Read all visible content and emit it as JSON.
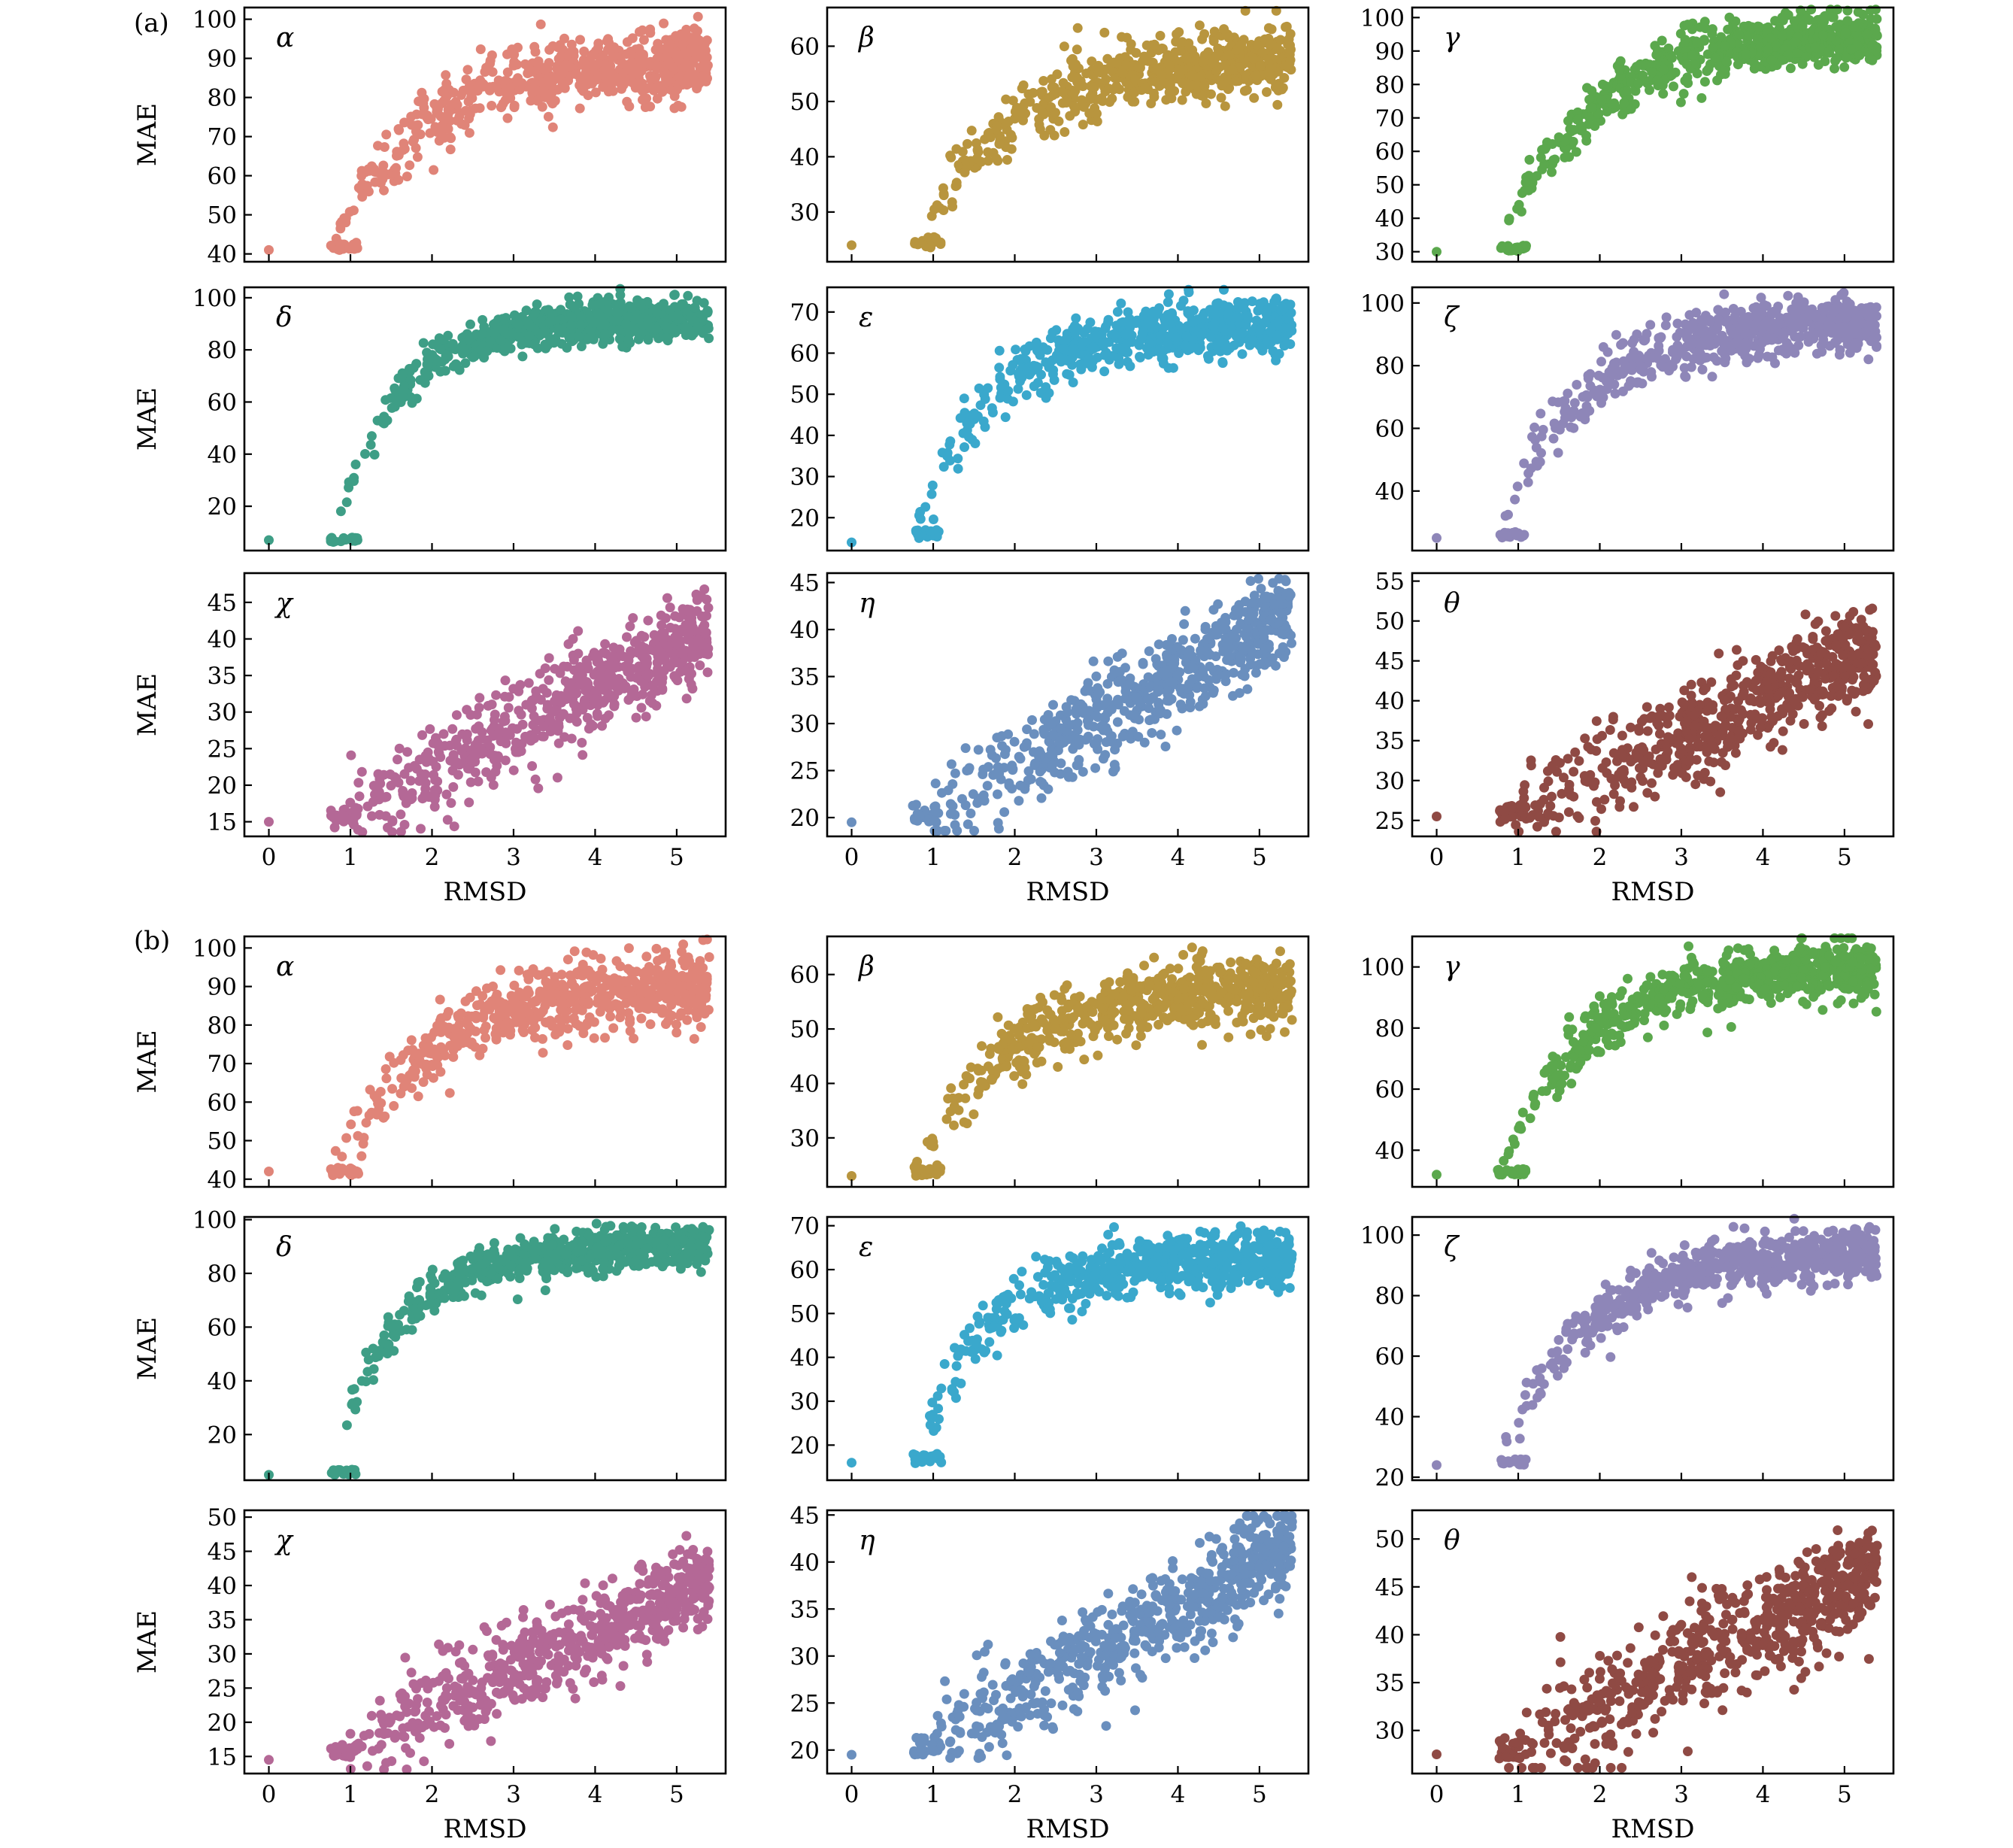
{
  "figure": {
    "group_labels": [
      "(a)",
      "(b)"
    ],
    "x_axis_label": "RMSD",
    "y_axis_label": "MAE"
  },
  "chart_data": [
    {
      "group": "(a)",
      "panel": "α",
      "type": "scatter",
      "color": "#e08478",
      "xlim": [
        -0.3,
        5.6
      ],
      "ylim": [
        38,
        103
      ],
      "xticks": [
        0,
        1,
        2,
        3,
        4,
        5
      ],
      "yticks": [
        40,
        50,
        60,
        70,
        80,
        90,
        100
      ],
      "xlabel": "",
      "ylabel": "MAE",
      "x_range": [
        0.75,
        5.4
      ],
      "y_floor": 41,
      "y_plateau": 90,
      "curve_k": 0.85,
      "noise": 4.5,
      "outlier": [
        0,
        41
      ]
    },
    {
      "group": "(a)",
      "panel": "β",
      "type": "scatter",
      "color": "#b8953e",
      "xlim": [
        -0.3,
        5.6
      ],
      "ylim": [
        21,
        67
      ],
      "xticks": [
        0,
        1,
        2,
        3,
        4,
        5
      ],
      "yticks": [
        30,
        40,
        50,
        60
      ],
      "xlabel": "",
      "ylabel": "",
      "x_range": [
        0.75,
        5.4
      ],
      "y_floor": 23.5,
      "y_plateau": 58,
      "curve_k": 0.85,
      "noise": 3.0,
      "outlier": [
        0,
        24
      ]
    },
    {
      "group": "(a)",
      "panel": "γ",
      "type": "scatter",
      "color": "#5ba84d",
      "xlim": [
        -0.3,
        5.6
      ],
      "ylim": [
        27,
        103
      ],
      "xticks": [
        0,
        1,
        2,
        3,
        4,
        5
      ],
      "yticks": [
        30,
        40,
        50,
        60,
        70,
        80,
        90,
        100
      ],
      "xlabel": "",
      "ylabel": "",
      "x_range": [
        0.75,
        5.4
      ],
      "y_floor": 30,
      "y_plateau": 95,
      "curve_k": 0.9,
      "noise": 4.0,
      "outlier": [
        0,
        30
      ]
    },
    {
      "group": "(a)",
      "panel": "δ",
      "type": "scatter",
      "color": "#3e9e86",
      "xlim": [
        -0.3,
        5.6
      ],
      "ylim": [
        3,
        104
      ],
      "xticks": [
        0,
        1,
        2,
        3,
        4,
        5
      ],
      "yticks": [
        20,
        40,
        60,
        80,
        100
      ],
      "xlabel": "",
      "ylabel": "MAE",
      "x_range": [
        0.75,
        5.4
      ],
      "y_floor": 6,
      "y_plateau": 92,
      "curve_k": 1.2,
      "noise": 4.0,
      "outlier": [
        0,
        7
      ]
    },
    {
      "group": "(a)",
      "panel": "ε",
      "type": "scatter",
      "color": "#3aa8cc",
      "xlim": [
        -0.3,
        5.6
      ],
      "ylim": [
        12,
        76
      ],
      "xticks": [
        0,
        1,
        2,
        3,
        4,
        5
      ],
      "yticks": [
        20,
        30,
        40,
        50,
        60,
        70
      ],
      "xlabel": "",
      "ylabel": "",
      "x_range": [
        0.75,
        5.4
      ],
      "y_floor": 15,
      "y_plateau": 67,
      "curve_k": 1.05,
      "noise": 3.5,
      "outlier": [
        0,
        14
      ]
    },
    {
      "group": "(a)",
      "panel": "ζ",
      "type": "scatter",
      "color": "#8e86b8",
      "xlim": [
        -0.3,
        5.6
      ],
      "ylim": [
        21,
        105
      ],
      "xticks": [
        0,
        1,
        2,
        3,
        4,
        5
      ],
      "yticks": [
        40,
        60,
        80,
        100
      ],
      "xlabel": "",
      "ylabel": "",
      "x_range": [
        0.75,
        5.4
      ],
      "y_floor": 25,
      "y_plateau": 94,
      "curve_k": 0.95,
      "noise": 4.5,
      "outlier": [
        0,
        25
      ]
    },
    {
      "group": "(a)",
      "panel": "χ",
      "type": "scatter",
      "color": "#b46896",
      "xlim": [
        -0.3,
        5.6
      ],
      "ylim": [
        13,
        49
      ],
      "xticks": [
        0,
        1,
        2,
        3,
        4,
        5
      ],
      "yticks": [
        15,
        20,
        25,
        30,
        35,
        40,
        45
      ],
      "xlabel": "RMSD",
      "ylabel": "MAE",
      "x_range": [
        0.75,
        5.4
      ],
      "y_start": 15,
      "slope": 5.6,
      "noise": 3.2,
      "outlier": [
        0,
        15
      ]
    },
    {
      "group": "(a)",
      "panel": "η",
      "type": "scatter",
      "color": "#6a8fbe",
      "xlim": [
        -0.3,
        5.6
      ],
      "ylim": [
        18,
        46
      ],
      "xticks": [
        0,
        1,
        2,
        3,
        4,
        5
      ],
      "yticks": [
        20,
        25,
        30,
        35,
        40,
        45
      ],
      "xlabel": "RMSD",
      "ylabel": "",
      "x_range": [
        0.75,
        5.4
      ],
      "y_start": 19.5,
      "slope": 4.8,
      "noise": 2.5,
      "outlier": [
        0,
        19.5
      ]
    },
    {
      "group": "(a)",
      "panel": "θ",
      "type": "scatter",
      "color": "#8f4a44",
      "xlim": [
        -0.3,
        5.6
      ],
      "ylim": [
        23,
        56
      ],
      "xticks": [
        0,
        1,
        2,
        3,
        4,
        5
      ],
      "yticks": [
        25,
        30,
        35,
        40,
        45,
        50,
        55
      ],
      "xlabel": "RMSD",
      "ylabel": "",
      "x_range": [
        0.75,
        5.4
      ],
      "y_start": 25,
      "slope": 4.7,
      "noise": 3.0,
      "outlier": [
        0,
        25.5
      ]
    },
    {
      "group": "(b)",
      "panel": "α",
      "type": "scatter",
      "color": "#e08478",
      "xlim": [
        -0.3,
        5.6
      ],
      "ylim": [
        38,
        103
      ],
      "xticks": [
        0,
        1,
        2,
        3,
        4,
        5
      ],
      "yticks": [
        40,
        50,
        60,
        70,
        80,
        90,
        100
      ],
      "xlabel": "",
      "ylabel": "MAE",
      "x_range": [
        0.75,
        5.4
      ],
      "y_floor": 41,
      "y_plateau": 90,
      "curve_k": 0.85,
      "noise": 4.5,
      "outlier": [
        0,
        42
      ]
    },
    {
      "group": "(b)",
      "panel": "β",
      "type": "scatter",
      "color": "#b8953e",
      "xlim": [
        -0.3,
        5.6
      ],
      "ylim": [
        21,
        67
      ],
      "xticks": [
        0,
        1,
        2,
        3,
        4,
        5
      ],
      "yticks": [
        30,
        40,
        50,
        60
      ],
      "xlabel": "",
      "ylabel": "",
      "x_range": [
        0.75,
        5.4
      ],
      "y_floor": 23,
      "y_plateau": 58,
      "curve_k": 0.85,
      "noise": 3.0,
      "outlier": [
        0,
        23
      ]
    },
    {
      "group": "(b)",
      "panel": "γ",
      "type": "scatter",
      "color": "#5ba84d",
      "xlim": [
        -0.3,
        5.6
      ],
      "ylim": [
        28,
        110
      ],
      "xticks": [
        0,
        1,
        2,
        3,
        4,
        5
      ],
      "yticks": [
        40,
        60,
        80,
        100
      ],
      "xlabel": "",
      "ylabel": "",
      "x_range": [
        0.75,
        5.4
      ],
      "y_floor": 32,
      "y_plateau": 100,
      "curve_k": 0.9,
      "noise": 4.5,
      "outlier": [
        0,
        32
      ]
    },
    {
      "group": "(b)",
      "panel": "δ",
      "type": "scatter",
      "color": "#3e9e86",
      "xlim": [
        -0.3,
        5.6
      ],
      "ylim": [
        3,
        101
      ],
      "xticks": [
        0,
        1,
        2,
        3,
        4,
        5
      ],
      "yticks": [
        20,
        40,
        60,
        80,
        100
      ],
      "xlabel": "",
      "ylabel": "MAE",
      "x_range": [
        0.75,
        5.4
      ],
      "y_floor": 5,
      "y_plateau": 90,
      "curve_k": 1.2,
      "noise": 4.0,
      "outlier": [
        0,
        5
      ]
    },
    {
      "group": "(b)",
      "panel": "ε",
      "type": "scatter",
      "color": "#3aa8cc",
      "xlim": [
        -0.3,
        5.6
      ],
      "ylim": [
        12,
        72
      ],
      "xticks": [
        0,
        1,
        2,
        3,
        4,
        5
      ],
      "yticks": [
        20,
        30,
        40,
        50,
        60,
        70
      ],
      "xlabel": "",
      "ylabel": "",
      "x_range": [
        0.75,
        5.4
      ],
      "y_floor": 16,
      "y_plateau": 63,
      "curve_k": 1.05,
      "noise": 3.5,
      "outlier": [
        0,
        16
      ]
    },
    {
      "group": "(b)",
      "panel": "ζ",
      "type": "scatter",
      "color": "#8e86b8",
      "xlim": [
        -0.3,
        5.6
      ],
      "ylim": [
        19,
        106
      ],
      "xticks": [
        0,
        1,
        2,
        3,
        4,
        5
      ],
      "yticks": [
        20,
        40,
        60,
        80,
        100
      ],
      "xlabel": "",
      "ylabel": "",
      "x_range": [
        0.75,
        5.4
      ],
      "y_floor": 24,
      "y_plateau": 94,
      "curve_k": 0.95,
      "noise": 4.5,
      "outlier": [
        0,
        24
      ]
    },
    {
      "group": "(b)",
      "panel": "χ",
      "type": "scatter",
      "color": "#b46896",
      "xlim": [
        -0.3,
        5.6
      ],
      "ylim": [
        12.5,
        51
      ],
      "xticks": [
        0,
        1,
        2,
        3,
        4,
        5
      ],
      "yticks": [
        15,
        20,
        25,
        30,
        35,
        40,
        45,
        50
      ],
      "xlabel": "RMSD",
      "ylabel": "MAE",
      "x_range": [
        0.75,
        5.4
      ],
      "y_start": 15,
      "slope": 5.6,
      "noise": 3.3,
      "outlier": [
        0,
        14.5
      ]
    },
    {
      "group": "(b)",
      "panel": "η",
      "type": "scatter",
      "color": "#6a8fbe",
      "xlim": [
        -0.3,
        5.6
      ],
      "ylim": [
        17.5,
        45.5
      ],
      "xticks": [
        0,
        1,
        2,
        3,
        4,
        5
      ],
      "yticks": [
        20,
        25,
        30,
        35,
        40,
        45
      ],
      "xlabel": "RMSD",
      "ylabel": "",
      "x_range": [
        0.75,
        5.4
      ],
      "y_start": 19.5,
      "slope": 4.8,
      "noise": 2.5,
      "outlier": [
        0,
        19.5
      ]
    },
    {
      "group": "(b)",
      "panel": "θ",
      "type": "scatter",
      "color": "#8f4a44",
      "xlim": [
        -0.3,
        5.6
      ],
      "ylim": [
        25.5,
        53
      ],
      "xticks": [
        0,
        1,
        2,
        3,
        4,
        5
      ],
      "yticks": [
        30,
        35,
        40,
        45,
        50
      ],
      "xlabel": "RMSD",
      "ylabel": "",
      "x_range": [
        0.75,
        5.4
      ],
      "y_start": 27,
      "slope": 4.3,
      "noise": 3.0,
      "outlier": [
        0,
        27.5
      ]
    }
  ]
}
